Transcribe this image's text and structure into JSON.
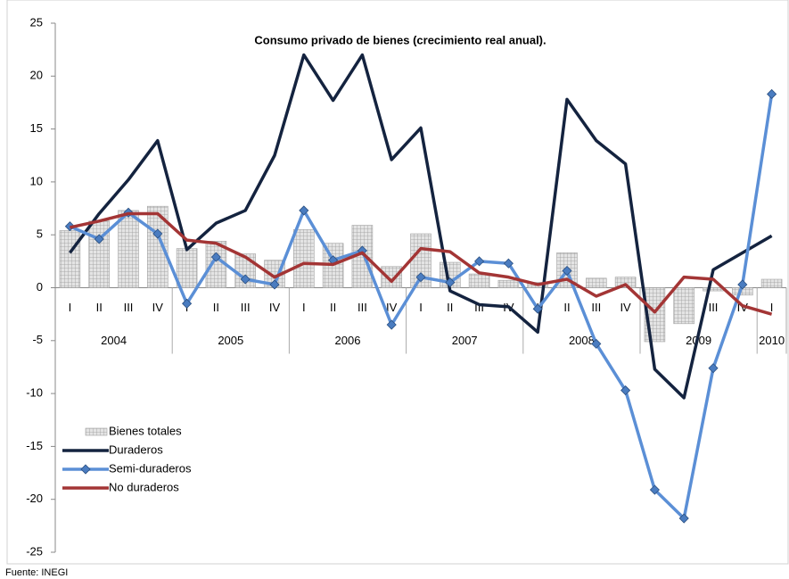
{
  "chart_data": {
    "type": "combo",
    "title": "Consumo privado de bienes (crecimiento real anual).",
    "source": "Fuente: INEGI",
    "groups": [
      {
        "label": "2004",
        "categories": [
          "I",
          "II",
          "III",
          "IV"
        ]
      },
      {
        "label": "2005",
        "categories": [
          "I",
          "II",
          "III",
          "IV"
        ]
      },
      {
        "label": "2006",
        "categories": [
          "I",
          "II",
          "III",
          "IV"
        ]
      },
      {
        "label": "2007",
        "categories": [
          "I",
          "II",
          "III",
          "IV"
        ]
      },
      {
        "label": "2008",
        "categories": [
          "I",
          "II",
          "III",
          "IV"
        ]
      },
      {
        "label": "2009",
        "categories": [
          "I",
          "II",
          "III",
          "IV"
        ]
      },
      {
        "label": "2010",
        "categories": [
          "I"
        ]
      }
    ],
    "ylim": [
      -25,
      25
    ],
    "yticks": [
      -25,
      -20,
      -15,
      -10,
      -5,
      0,
      5,
      10,
      15,
      20,
      25
    ],
    "grid": false,
    "legend": "lower-left",
    "series": [
      {
        "name": "Bienes totales",
        "kind": "bar",
        "color": "#b0b0b0",
        "values": [
          5.4,
          6.3,
          7.3,
          7.7,
          3.7,
          4.4,
          3.2,
          2.6,
          5.5,
          4.2,
          5.9,
          2.0,
          5.1,
          2.4,
          1.3,
          0.7,
          0.5,
          3.3,
          0.9,
          1.0,
          -5.1,
          -3.4,
          -0.3,
          -0.7,
          0.8
        ]
      },
      {
        "name": "Duraderos",
        "kind": "line",
        "color": "#14233f",
        "values": [
          3.3,
          7.0,
          10.2,
          13.9,
          3.6,
          6.1,
          7.3,
          12.5,
          22.0,
          17.7,
          22.0,
          12.1,
          15.1,
          -0.3,
          -1.6,
          -1.8,
          -4.2,
          17.8,
          13.9,
          11.7,
          -7.7,
          -10.4,
          1.7,
          3.3,
          4.9
        ]
      },
      {
        "name": "Semi-duraderos",
        "kind": "line",
        "marker": "diamond",
        "color": "#5b8fd6",
        "values": [
          5.8,
          4.6,
          7.1,
          5.1,
          -1.5,
          2.9,
          0.8,
          0.3,
          7.3,
          2.6,
          3.5,
          -3.5,
          1.0,
          0.5,
          2.5,
          2.3,
          -2.0,
          1.6,
          -5.3,
          -9.7,
          -19.1,
          -21.8,
          -7.6,
          0.3,
          18.3
        ]
      },
      {
        "name": "No duraderos",
        "kind": "line",
        "color": "#a33535",
        "values": [
          5.7,
          6.3,
          7.0,
          7.0,
          4.5,
          4.2,
          2.9,
          1.0,
          2.3,
          2.2,
          3.3,
          0.6,
          3.7,
          3.4,
          1.4,
          1.0,
          0.3,
          0.8,
          -0.8,
          0.3,
          -2.3,
          1.0,
          0.8,
          -1.7,
          -2.5
        ]
      }
    ]
  }
}
